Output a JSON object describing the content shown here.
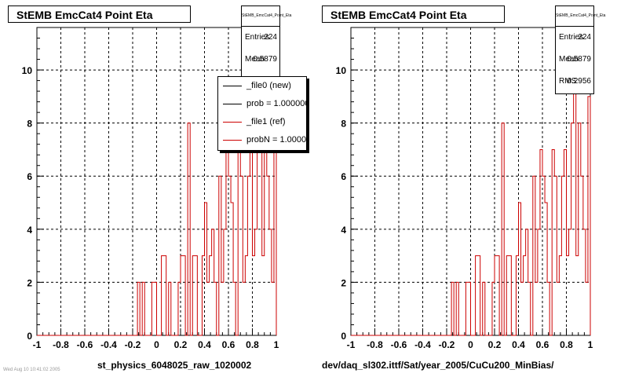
{
  "chart_data": [
    {
      "type": "histogram",
      "title": "StEMB EmcCat4 Point Eta",
      "xlabel": "st_physics_6048025_raw_1020002",
      "ylabel": "",
      "xlim": [
        -1,
        1
      ],
      "ylim": [
        0,
        11.6
      ],
      "x_ticks": [
        "-1",
        "-0.8",
        "-0.6",
        "-0.4",
        "-0.2",
        "0",
        "0.2",
        "0.4",
        "0.6",
        "0.8",
        "1"
      ],
      "y_ticks": [
        "0",
        "2",
        "4",
        "6",
        "8",
        "10"
      ],
      "grid": true,
      "stats": {
        "title": "StEMB_EmcCat4_Point_Eta",
        "rows": [
          {
            "label": "Entries",
            "value": "224"
          },
          {
            "label": "Mean",
            "value": "0.5879"
          }
        ]
      },
      "legend": {
        "position": "top-right",
        "entries": [
          {
            "label": "_file0 (new)",
            "color": "#000000"
          },
          {
            "label": "prob = 1.000000",
            "color": "#000000"
          },
          {
            "label": "_file1 (ref)",
            "color": "#cc0000"
          },
          {
            "label": "probN = 1.000000",
            "color": "#cc0000"
          }
        ]
      },
      "series": [
        {
          "color": "#cc0000",
          "bins": {
            "min": -1,
            "max": 1,
            "n": 100
          },
          "values": [
            0,
            0,
            0,
            0,
            0,
            0,
            0,
            0,
            0,
            0,
            0,
            0,
            0,
            0,
            0,
            0,
            0,
            0,
            0,
            0,
            0,
            0,
            0,
            0,
            0,
            0,
            0,
            0,
            0,
            0,
            0,
            0,
            0,
            0,
            0,
            0,
            0,
            0,
            0,
            0,
            0,
            0,
            2,
            0,
            2,
            0,
            0,
            0,
            2,
            2,
            0,
            0,
            3,
            3,
            0,
            2,
            0,
            0,
            0,
            2,
            3,
            3,
            0,
            8,
            0,
            3,
            3,
            0,
            0,
            3,
            5,
            2,
            3,
            4,
            2,
            0,
            6,
            2,
            4,
            7,
            6,
            5,
            2,
            0,
            7,
            6,
            2,
            3,
            6,
            7,
            3,
            4,
            8,
            11,
            3,
            8,
            6,
            4,
            2,
            9
          ]
        }
      ]
    },
    {
      "type": "histogram",
      "title": "StEMB EmcCat4 Point Eta",
      "xlabel": "dev/daq_sl302.ittf/Sat/year_2005/CuCu200_MinBias/",
      "ylabel": "",
      "xlim": [
        -1,
        1
      ],
      "ylim": [
        0,
        11.6
      ],
      "x_ticks": [
        "-1",
        "-0.8",
        "-0.6",
        "-0.4",
        "-0.2",
        "0",
        "0.2",
        "0.4",
        "0.6",
        "0.8",
        "1"
      ],
      "y_ticks": [
        "0",
        "2",
        "4",
        "6",
        "8",
        "10"
      ],
      "grid": true,
      "stats": {
        "title": "StEMB_EmcCat4_Point_Eta",
        "rows": [
          {
            "label": "Entries",
            "value": "224"
          },
          {
            "label": "Mean",
            "value": "0.5879"
          },
          {
            "label": "RMS",
            "value": "0.2956"
          }
        ]
      },
      "series": [
        {
          "color": "#cc0000",
          "bins": {
            "min": -1,
            "max": 1,
            "n": 100
          },
          "values": [
            0,
            0,
            0,
            0,
            0,
            0,
            0,
            0,
            0,
            0,
            0,
            0,
            0,
            0,
            0,
            0,
            0,
            0,
            0,
            0,
            0,
            0,
            0,
            0,
            0,
            0,
            0,
            0,
            0,
            0,
            0,
            0,
            0,
            0,
            0,
            0,
            0,
            0,
            0,
            0,
            0,
            0,
            2,
            0,
            2,
            0,
            0,
            0,
            2,
            2,
            0,
            0,
            3,
            3,
            0,
            2,
            0,
            0,
            0,
            2,
            3,
            3,
            0,
            8,
            0,
            3,
            3,
            0,
            0,
            3,
            5,
            2,
            3,
            4,
            2,
            0,
            6,
            2,
            4,
            7,
            6,
            5,
            2,
            0,
            7,
            6,
            2,
            3,
            6,
            7,
            3,
            4,
            8,
            11,
            3,
            8,
            6,
            4,
            2,
            9
          ]
        }
      ]
    }
  ],
  "footer": "Wed Aug 10 10:41:02 2005"
}
